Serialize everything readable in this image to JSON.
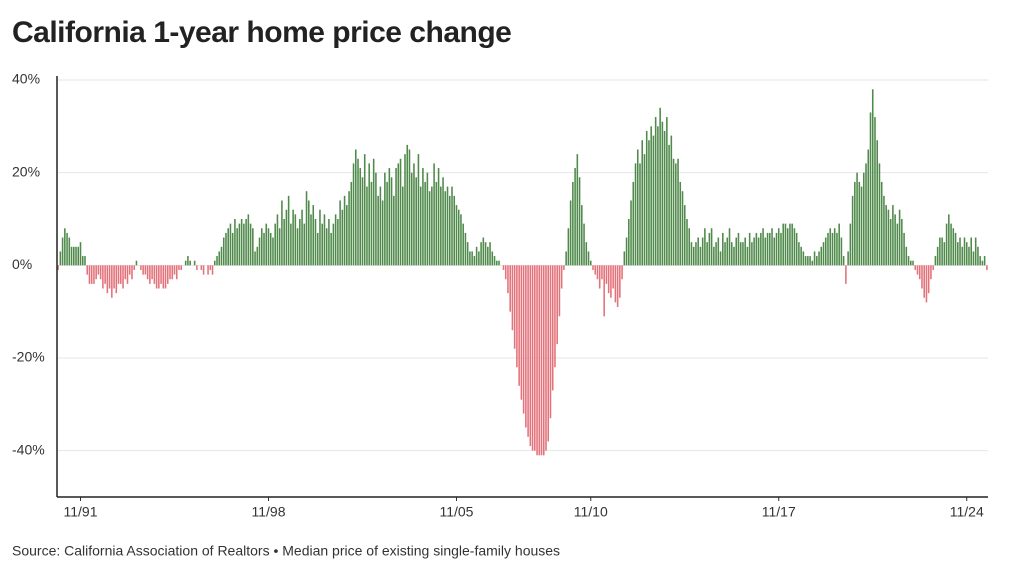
{
  "chart_data": {
    "type": "bar",
    "title": "California 1-year home price change",
    "source": "Source: California Association of Realtors • Median price of existing single-family houses",
    "categories": [
      null,
      null,
      null,
      null,
      null,
      null,
      null,
      null,
      null,
      null,
      "11/91",
      null,
      null,
      null,
      null,
      null,
      null,
      null,
      null,
      null,
      null,
      null,
      null,
      null,
      null,
      null,
      null,
      null,
      null,
      null,
      null,
      null,
      null,
      null,
      null,
      null,
      null,
      null,
      null,
      null,
      null,
      null,
      null,
      null,
      null,
      null,
      null,
      null,
      null,
      null,
      null,
      null,
      null,
      null,
      null,
      null,
      null,
      null,
      null,
      null,
      null,
      null,
      null,
      null,
      null,
      null,
      null,
      null,
      null,
      null,
      null,
      null,
      null,
      null,
      null,
      null,
      null,
      null,
      null,
      null,
      null,
      null,
      null,
      null,
      null,
      null,
      null,
      null,
      null,
      null,
      null,
      null,
      null,
      null,
      "11/98",
      null,
      null,
      null,
      null,
      null,
      null,
      null,
      null,
      null,
      null,
      null,
      null,
      null,
      null,
      null,
      null,
      null,
      null,
      null,
      null,
      null,
      null,
      null,
      null,
      null,
      null,
      null,
      null,
      null,
      null,
      null,
      null,
      null,
      null,
      null,
      null,
      null,
      null,
      null,
      null,
      null,
      null,
      null,
      null,
      null,
      null,
      null,
      null,
      null,
      null,
      null,
      null,
      null,
      null,
      null,
      null,
      null,
      null,
      null,
      null,
      null,
      null,
      null,
      null,
      null,
      null,
      null,
      null,
      null,
      null,
      null,
      null,
      null,
      null,
      null,
      null,
      null,
      null,
      null,
      null,
      null,
      null,
      null,
      "11/05",
      null,
      null,
      null,
      null,
      null,
      null,
      null,
      null,
      null,
      null,
      null,
      null,
      null,
      null,
      null,
      null,
      null,
      null,
      null,
      null,
      null,
      null,
      null,
      null,
      null,
      null,
      null,
      null,
      null,
      null,
      null,
      null,
      null,
      null,
      null,
      null,
      null,
      null,
      null,
      null,
      null,
      null,
      null,
      null,
      null,
      null,
      null,
      null,
      null,
      null,
      null,
      null,
      null,
      null,
      null,
      null,
      null,
      null,
      null,
      "11/10",
      null,
      null,
      null,
      null,
      null,
      null,
      null,
      null,
      null,
      null,
      null,
      null,
      null,
      null,
      null,
      null,
      null,
      null,
      null,
      null,
      null,
      null,
      null,
      null,
      null,
      null,
      null,
      null,
      null,
      null,
      null,
      null,
      null,
      null,
      null,
      null,
      null,
      null,
      null,
      null,
      null,
      null,
      null,
      null,
      null,
      null,
      null,
      null,
      null,
      null,
      null,
      null,
      null,
      null,
      null,
      null,
      null,
      null,
      null,
      null,
      null,
      null,
      null,
      null,
      null,
      null,
      null,
      null,
      null,
      null,
      null,
      null,
      null,
      null,
      null,
      null,
      null,
      null,
      null,
      null,
      null,
      null,
      null,
      "11/17",
      null,
      null,
      null,
      null,
      null,
      null,
      null,
      null,
      null,
      null,
      null,
      null,
      null,
      null,
      null,
      null,
      null,
      null,
      null,
      null,
      null,
      null,
      null,
      null,
      null,
      null,
      null,
      null,
      null,
      null,
      null,
      null,
      null,
      null,
      null,
      null,
      null,
      null,
      null,
      null,
      null,
      null,
      null,
      null,
      null,
      null,
      null,
      null,
      null,
      null,
      null,
      null,
      null,
      null,
      null,
      null,
      null,
      null,
      null,
      null,
      null,
      null,
      null,
      null,
      null,
      null,
      null,
      null,
      null,
      null,
      null,
      null,
      null,
      null,
      null,
      null,
      null,
      null,
      null,
      null,
      null,
      null,
      null,
      "11/24",
      null,
      null,
      null,
      null,
      null,
      null,
      null,
      null,
      null
    ],
    "values": [
      -1,
      3,
      6,
      8,
      7,
      6,
      4,
      4,
      4,
      4,
      5,
      2,
      2,
      -2,
      -4,
      -4,
      -4,
      -3,
      -2,
      -3,
      -5,
      -4,
      -6,
      -5,
      -7,
      -5,
      -6,
      -4,
      -4,
      -5,
      -3,
      -4,
      -2,
      -3,
      -1,
      1,
      0,
      -1,
      -2,
      -2,
      -3,
      -4,
      -3,
      -4,
      -5,
      -5,
      -4,
      -5,
      -5,
      -4,
      -3,
      -3,
      -2,
      -3,
      -1,
      -1,
      0,
      1,
      2,
      1,
      0,
      1,
      -1,
      0,
      -1,
      -2,
      0,
      -2,
      -1,
      -2,
      1,
      2,
      3,
      4,
      6,
      7,
      8,
      9,
      7,
      10,
      8,
      9,
      10,
      9,
      10,
      11,
      9,
      8,
      3,
      4,
      6,
      8,
      7,
      9,
      8,
      7,
      6,
      9,
      11,
      8,
      14,
      10,
      12,
      15,
      9,
      12,
      11,
      8,
      10,
      12,
      9,
      16,
      14,
      11,
      13,
      10,
      7,
      12,
      9,
      11,
      8,
      10,
      7,
      9,
      11,
      10,
      14,
      12,
      15,
      13,
      16,
      18,
      22,
      25,
      23,
      21,
      19,
      24,
      17,
      22,
      18,
      23,
      20,
      15,
      17,
      14,
      20,
      18,
      21,
      19,
      15,
      21,
      22,
      23,
      17,
      24,
      26,
      25,
      20,
      22,
      19,
      24,
      17,
      21,
      18,
      20,
      16,
      17,
      22,
      18,
      21,
      17,
      19,
      16,
      17,
      15,
      17,
      15,
      13,
      12,
      11,
      9,
      7,
      5,
      3,
      3,
      2,
      4,
      3,
      5,
      6,
      5,
      4,
      5,
      3,
      2,
      1,
      1,
      0,
      -1,
      -3,
      -6,
      -10,
      -14,
      -18,
      -22,
      -26,
      -29,
      -32,
      -35,
      -37,
      -39,
      -40,
      -40,
      -41,
      -41,
      -41,
      -41,
      -40,
      -38,
      -33,
      -27,
      -22,
      -17,
      -11,
      -5,
      -1,
      3,
      8,
      14,
      18,
      21,
      24,
      19,
      13,
      9,
      5,
      3,
      1,
      -1,
      -2,
      -3,
      -5,
      -3,
      -11,
      -4,
      -6,
      -7,
      -5,
      -8,
      -9,
      -7,
      -3,
      3,
      6,
      10,
      14,
      18,
      22,
      25,
      22,
      27,
      24,
      29,
      27,
      30,
      28,
      32,
      30,
      34,
      31,
      29,
      32,
      26,
      28,
      23,
      22,
      23,
      18,
      16,
      13,
      10,
      8,
      5,
      4,
      5,
      6,
      4,
      6,
      8,
      5,
      7,
      8,
      4,
      5,
      6,
      3,
      7,
      5,
      6,
      8,
      5,
      4,
      6,
      7,
      5,
      5,
      6,
      4,
      7,
      5,
      6,
      7,
      6,
      7,
      8,
      6,
      7,
      7,
      8,
      6,
      7,
      8,
      7,
      9,
      9,
      8,
      9,
      9,
      8,
      7,
      5,
      4,
      3,
      2,
      2,
      2,
      1,
      3,
      2,
      3,
      4,
      5,
      6,
      7,
      8,
      7,
      8,
      7,
      9,
      6,
      2,
      -4,
      3,
      9,
      15,
      18,
      20,
      18,
      17,
      20,
      22,
      25,
      33,
      38,
      32,
      27,
      22,
      18,
      15,
      13,
      12,
      10,
      13,
      11,
      9,
      12,
      10,
      7,
      4,
      2,
      1,
      1,
      -1,
      -2,
      -3,
      -5,
      -7,
      -8,
      -6,
      -3,
      -1,
      2,
      4,
      6,
      6,
      5,
      9,
      11,
      9,
      8,
      7,
      5,
      6,
      4,
      6,
      5,
      4,
      6,
      3,
      6,
      4,
      2,
      1,
      2,
      -1
    ],
    "positive_color": "#4f8a4b",
    "negative_color": "#e3727a",
    "ylim": [
      -50,
      40
    ],
    "yticks": [
      {
        "value": 40,
        "label": "40%"
      },
      {
        "value": 20,
        "label": "20%"
      },
      {
        "value": 0,
        "label": "0%"
      },
      {
        "value": -20,
        "label": "-20%"
      },
      {
        "value": -40,
        "label": "-40%"
      }
    ],
    "grid": true
  }
}
